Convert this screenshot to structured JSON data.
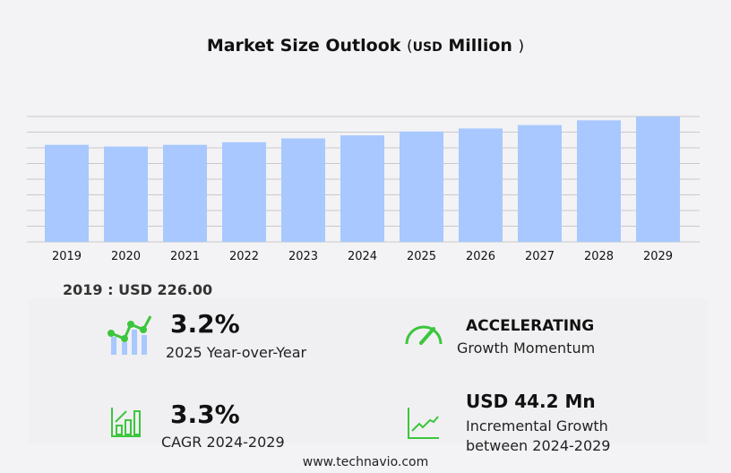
{
  "title": {
    "main": "Market Size Outlook",
    "open": "(",
    "unit": "USD",
    "unit2": "Million",
    "close": ")"
  },
  "chart_data": {
    "type": "bar",
    "title": "Market Size Outlook (USD Million)",
    "categories": [
      "2019",
      "2020",
      "2021",
      "2022",
      "2023",
      "2024",
      "2025",
      "2026",
      "2027",
      "2028",
      "2029"
    ],
    "values": [
      226,
      222,
      226,
      232,
      241,
      248,
      257,
      264,
      272,
      283,
      292
    ],
    "ylim": [
      0,
      292
    ],
    "grid": true,
    "bar_color": "#a8c8ff"
  },
  "base": {
    "label": "2019 : USD  226.00"
  },
  "stats": {
    "yoy": {
      "value": "3.2%",
      "label": "2025 Year-over-Year",
      "icon": "growth-chart-icon"
    },
    "momentum": {
      "value": "ACCELERATING",
      "label": "Growth Momentum",
      "icon": "speedometer-icon"
    },
    "cagr": {
      "value": "3.3%",
      "label": "CAGR 2024-2029",
      "icon": "bar-growth-icon"
    },
    "incremental": {
      "value": "USD 44.2 Mn",
      "label1": "Incremental Growth",
      "label2": "between 2024-2029",
      "icon": "trend-line-icon"
    }
  },
  "accent": "#3cc63c",
  "footer": "www.technavio.com"
}
